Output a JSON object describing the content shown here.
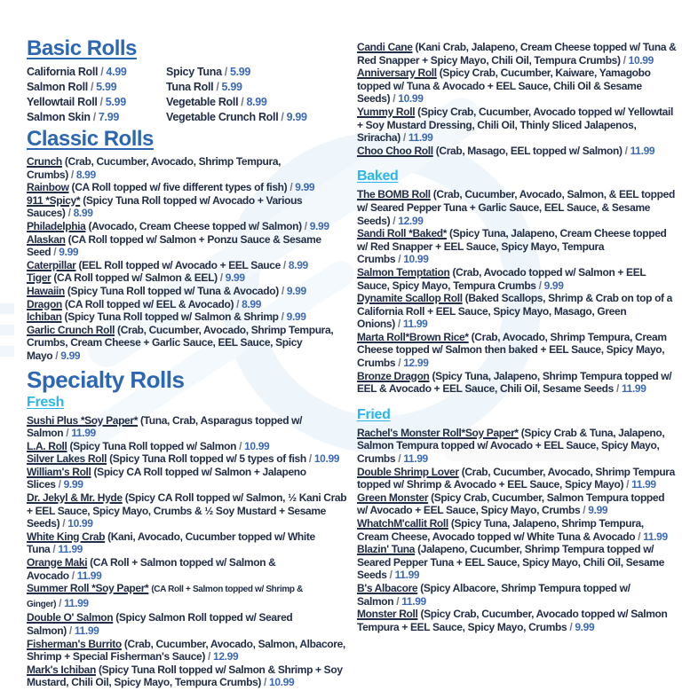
{
  "colors": {
    "heading_blue": "#2d67b1",
    "subheading_cyan": "#29b6e8",
    "text_dark": "#222e47",
    "price_blue": "#3c69b3",
    "watermark_blue": "#d9ebf6"
  },
  "menu": {
    "separator": "/",
    "basic": {
      "title": "Basic Rolls",
      "items": [
        {
          "name": "California Roll",
          "price": "4.99"
        },
        {
          "name": "Spicy Tuna",
          "price": "5.99"
        },
        {
          "name": "Salmon Roll",
          "price": "5.99"
        },
        {
          "name": "Tuna Roll",
          "price": "5.99"
        },
        {
          "name": "Yellowtail Roll",
          "price": "5.99"
        },
        {
          "name": "Vegetable Roll",
          "price": "8.99"
        },
        {
          "name": "Salmon Skin",
          "price": "7.99"
        },
        {
          "name": "Vegetable Crunch Roll",
          "price": "9.99"
        }
      ]
    },
    "classic": {
      "title": "Classic Rolls",
      "items": [
        {
          "name": "Crunch",
          "desc": "(Crab, Cucumber, Avocado, Shrimp Tempura, Crumbs)",
          "price": "8.99"
        },
        {
          "name": "Rainbow",
          "desc": "(CA Roll topped w/ five different types of fish)",
          "price": "9.99"
        },
        {
          "name": "911 *Spicy*",
          "desc": "(Spicy Tuna Roll topped w/ Avocado + Various Sauces)",
          "price": "8.99"
        },
        {
          "name": "Philadelphia",
          "desc": "(Avocado, Cream Cheese topped w/ Salmon)",
          "price": "9.99"
        },
        {
          "name": "Alaskan",
          "desc": "(CA Roll topped w/ Salmon + Ponzu Sauce & Sesame Seed",
          "price": "9.99"
        },
        {
          "name": "Caterpillar",
          "desc": "(EEL Roll topped w/ Avocado + EEL Sauce",
          "price": "8.99"
        },
        {
          "name": "Tiger",
          "desc": "(CA Roll topped w/ Salmon & EEL)",
          "price": "9.99"
        },
        {
          "name": "Hawaiin",
          "desc": "(Spicy Tuna Roll topped w/ Tuna & Avocado)",
          "price": "9.99"
        },
        {
          "name": "Dragon",
          "desc": "(CA Roll topped w/ EEL & Avocado)",
          "price": "8.99"
        },
        {
          "name": "Ichiban",
          "desc": "(Spicy Tuna Roll topped w/ Salmon & Shrimp",
          "price": "9.99"
        },
        {
          "name": "Garlic Crunch Roll",
          "desc": "(Crab, Cucumber, Avocado, Shrimp Tempura, Crumbs, Cream Cheese + Garlic Sauce, EEL Sauce, Spicy Mayo",
          "price": "9.99"
        }
      ]
    },
    "specialty": {
      "title": "Specialty Rolls"
    },
    "fresh": {
      "title": "Fresh",
      "items": [
        {
          "name": "Sushi Plus *Soy Paper*",
          "desc": "(Tuna, Crab, Asparagus topped w/ Salmon",
          "price": "11.99"
        },
        {
          "name": "L.A. Roll",
          "desc": "(Spicy Tuna Roll topped w/ Salmon",
          "price": "10.99"
        },
        {
          "name": "Silver Lakes Roll",
          "desc": "(Spicy Tuna Roll topped w/ 5 types of fish",
          "price": "10.99"
        },
        {
          "name": "William's Roll",
          "desc": "(Spicy CA Roll topped w/ Salmon + Jalapeno Slices",
          "price": "9.99"
        },
        {
          "name": "Dr. Jekyl & Mr. Hyde",
          "desc": "(Spicy CA Roll topped w/ Salmon, ½ Kani Crab + EEL Sauce, Spicy Mayo, Crumbs & ½ Soy Mustard + Sesame Seeds)",
          "price": "10.99"
        },
        {
          "name": "White King Crab",
          "desc": "(Kani, Avocado, Cucumber topped w/ White Tuna",
          "price": "11.99"
        },
        {
          "name": "Orange Maki",
          "desc": "(CA Roll + Salmon topped w/ Salmon & Avocado",
          "price": "11.99"
        },
        {
          "name": "Summer Roll *Soy Paper*",
          "desc": "(CA Roll + Salmon topped w/ Shrimp & Ginger)",
          "price": "11.99",
          "small": true
        },
        {
          "name": "Double O' Salmon",
          "desc": "(Spicy Salmon Roll topped w/ Seared Salmon)",
          "price": "11.99"
        },
        {
          "name": "Fisherman's Burrito",
          "desc": "(Crab, Cucumber, Avocado, Salmon, Albacore, Shrimp + Special Fisherman's Sauce)",
          "price": "12.99"
        },
        {
          "name": "Mark's Ichiban",
          "desc": "(Spicy Tuna Roll topped w/ Salmon & Shrimp + Soy Mustard, Chili Oil, Spicy Mayo, Tempura Crumbs)",
          "price": "10.99"
        }
      ]
    },
    "right_top": {
      "items": [
        {
          "name": "Candi Cane",
          "desc": "(Kani Crab, Jalapeno, Cream Cheese topped w/ Tuna & Red Snapper + Spicy Mayo, Chili Oil, Tempura Crumbs)",
          "price": "10.99"
        },
        {
          "name": "Anniversary Roll",
          "desc": "(Spicy Crab, Cucumber, Kaiware, Yamagobo topped w/ Tuna & Avocado + EEL Sauce, Chili Oil & Sesame Seeds)",
          "price": "10.99"
        },
        {
          "name": "Yummy Roll",
          "desc": "(Spicy Crab, Cucumber, Avocado topped w/ Yellowtail + Soy Mustard Dressing, Chili Oil, Thinly Sliced Jalapenos, Sriracha)",
          "price": "11.99"
        },
        {
          "name": "Choo Choo Roll",
          "desc": "(Crab, Masago, EEL topped w/ Salmon)",
          "price": "11.99"
        }
      ]
    },
    "baked": {
      "title": "Baked",
      "items": [
        {
          "name": "The BOMB Roll",
          "desc": "(Crab, Cucumber, Avocado, Salmon, & EEL topped w/ Seared Pepper Tuna + Garlic Sauce, EEL Sauce, & Sesame Seeds)",
          "price": "12.99"
        },
        {
          "name": "Sandi Roll *Baked*",
          "desc": "(Spicy Tuna, Jalapeno, Cream Cheese topped w/ Red Snapper + EEL Sauce, Spicy Mayo, Tempura Crumbs",
          "price": "10.99"
        },
        {
          "name": "Salmon Temptation",
          "desc": "(Crab, Avocado topped w/ Salmon + EEL Sauce, Spicy Mayo, Tempura Crumbs",
          "price": "9.99"
        },
        {
          "name": "Dynamite Scallop Roll",
          "desc": "(Baked Scallops, Shrimp & Crab on top of a California Roll + EEL Sauce, Spicy Mayo, Masago, Green Onions)",
          "price": "11.99"
        },
        {
          "name": "Marta Roll*Brown Rice*",
          "desc": "(Crab, Avocado, Shrimp Tempura, Cream Cheese topped w/ Salmon then baked + EEL Sauce, Spicy Mayo, Crumbs",
          "price": "12.99"
        },
        {
          "name": "Bronze Dragon",
          "desc": "(Spicy Tuna, Jalapeno, Shrimp Tempura topped w/ EEL & Avocado + EEL Sauce, Chili Oil, Sesame Seeds",
          "price": "11.99"
        }
      ]
    },
    "fried": {
      "title": "Fried",
      "items": [
        {
          "name": "Rachel's Monster Roll*Soy Paper*",
          "desc": "(Spicy Crab & Tuna, Jalapeno, Salmon Tempura topped w/ Avocado + EEL Sauce, Spicy Mayo, Crumbs",
          "price": "11.99"
        },
        {
          "name": "Double Shrimp Lover",
          "desc": "(Crab, Cucumber, Avocado, Shrimp Tempura topped w/ Shrimp & Avocado + EEL Sauce, Spicy Mayo)",
          "price": "11.99"
        },
        {
          "name": "Green Monster",
          "desc": "(Spicy Crab, Cucumber, Salmon Tempura topped w/ Avocado + EEL Sauce, Spicy Mayo, Crumbs",
          "price": "9.99"
        },
        {
          "name": "WhatchM'callit Roll",
          "desc": "(Spicy Tuna, Jalapeno, Shrimp Tempura, Cream Cheese, Avocado topped w/ White Tuna & Avocado",
          "price": "11.99"
        },
        {
          "name": "Blazin' Tuna",
          "desc": "(Jalapeno, Cucumber, Shrimp Tempura topped w/ Seared Pepper Tuna + EEL Sauce, Spicy Mayo, Chili Oil, Sesame Seeds",
          "price": "11.99"
        },
        {
          "name": "B's Albacore",
          "desc": "(Spicy Albacore, Shrimp Tempura topped w/ Salmon",
          "price": "11.99"
        },
        {
          "name": "Monster Roll",
          "desc": "(Spicy Crab, Cucumber, Avocado topped w/ Salmon Tempura + EEL Sauce, Spicy Mayo, Crumbs",
          "price": "9.99"
        }
      ]
    }
  }
}
